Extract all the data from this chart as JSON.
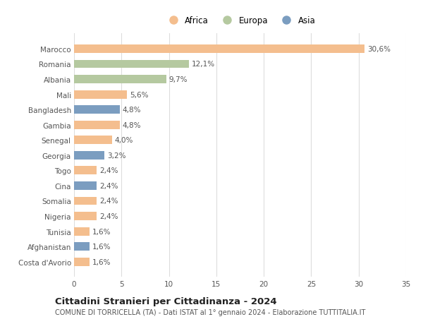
{
  "countries": [
    "Marocco",
    "Romania",
    "Albania",
    "Mali",
    "Bangladesh",
    "Gambia",
    "Senegal",
    "Georgia",
    "Togo",
    "Cina",
    "Somalia",
    "Nigeria",
    "Tunisia",
    "Afghanistan",
    "Costa d'Avorio"
  ],
  "values": [
    30.6,
    12.1,
    9.7,
    5.6,
    4.8,
    4.8,
    4.0,
    3.2,
    2.4,
    2.4,
    2.4,
    2.4,
    1.6,
    1.6,
    1.6
  ],
  "labels": [
    "30,6%",
    "12,1%",
    "9,7%",
    "5,6%",
    "4,8%",
    "4,8%",
    "4,0%",
    "3,2%",
    "2,4%",
    "2,4%",
    "2,4%",
    "2,4%",
    "1,6%",
    "1,6%",
    "1,6%"
  ],
  "continents": [
    "Africa",
    "Europa",
    "Europa",
    "Africa",
    "Asia",
    "Africa",
    "Africa",
    "Asia",
    "Africa",
    "Asia",
    "Africa",
    "Africa",
    "Africa",
    "Asia",
    "Africa"
  ],
  "colors": {
    "Africa": "#F4BE8E",
    "Europa": "#B5C9A0",
    "Asia": "#7B9DC0"
  },
  "xlim": [
    0,
    35
  ],
  "xticks": [
    0,
    5,
    10,
    15,
    20,
    25,
    30,
    35
  ],
  "title": "Cittadini Stranieri per Cittadinanza - 2024",
  "subtitle": "COMUNE DI TORRICELLA (TA) - Dati ISTAT al 1° gennaio 2024 - Elaborazione TUTTITALIA.IT",
  "background_color": "#ffffff",
  "plot_background": "#ffffff",
  "bar_height": 0.55,
  "label_fontsize": 7.5,
  "tick_fontsize": 7.5,
  "title_fontsize": 9.5,
  "subtitle_fontsize": 7.0,
  "legend_fontsize": 8.5
}
